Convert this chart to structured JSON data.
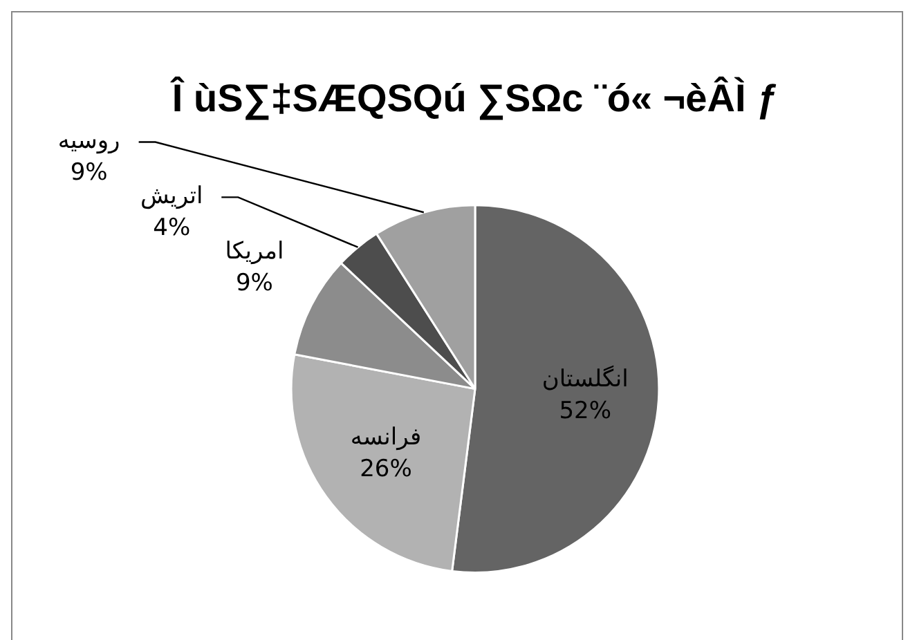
{
  "chart_data": {
    "type": "pie",
    "title": "Î ùS∑‡SÆQSQú ∑SΩc ¨ó« ¬èÂÌ ƒ",
    "categories": [
      "انگلستان",
      "فرانسه",
      "امریکا",
      "اتریش",
      "روسیه"
    ],
    "values": [
      52,
      26,
      9,
      4,
      9
    ],
    "value_labels": [
      "52%",
      "26%",
      "9%",
      "4%",
      "9%"
    ],
    "colors": [
      "#646464",
      "#b2b2b2",
      "#8c8c8c",
      "#4d4d4d",
      "#a0a0a0"
    ],
    "legend": false
  }
}
